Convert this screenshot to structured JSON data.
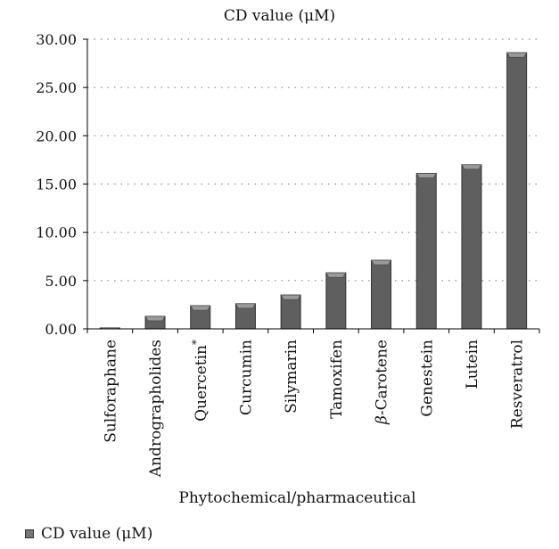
{
  "chart_data": {
    "type": "bar",
    "title": "CD value (μM)",
    "xlabel": "Phytochemical/pharmaceutical",
    "ylabel": "",
    "categories": [
      "Sulforaphane",
      "Andrographolides",
      "Quercetin*",
      "Curcumin",
      "Silymarin",
      "Tamoxifen",
      "β-Carotene",
      "Genestein",
      "Lutein",
      "Resveratrol"
    ],
    "series": [
      {
        "name": "CD value (μM)",
        "values": [
          0.1,
          1.3,
          2.4,
          2.6,
          3.5,
          5.8,
          7.1,
          16.1,
          17.0,
          28.6
        ]
      }
    ],
    "ylim": [
      0,
      30
    ],
    "yticks": [
      "0.00",
      "5.00",
      "10.00",
      "15.00",
      "20.00",
      "25.00",
      "30.00"
    ],
    "grid": true,
    "legend_position": "bottom-left",
    "colors": {
      "bar": "#5f5f5f",
      "bar_top": "#9a9a9a",
      "grid": "#888888",
      "axis": "#000000"
    }
  }
}
